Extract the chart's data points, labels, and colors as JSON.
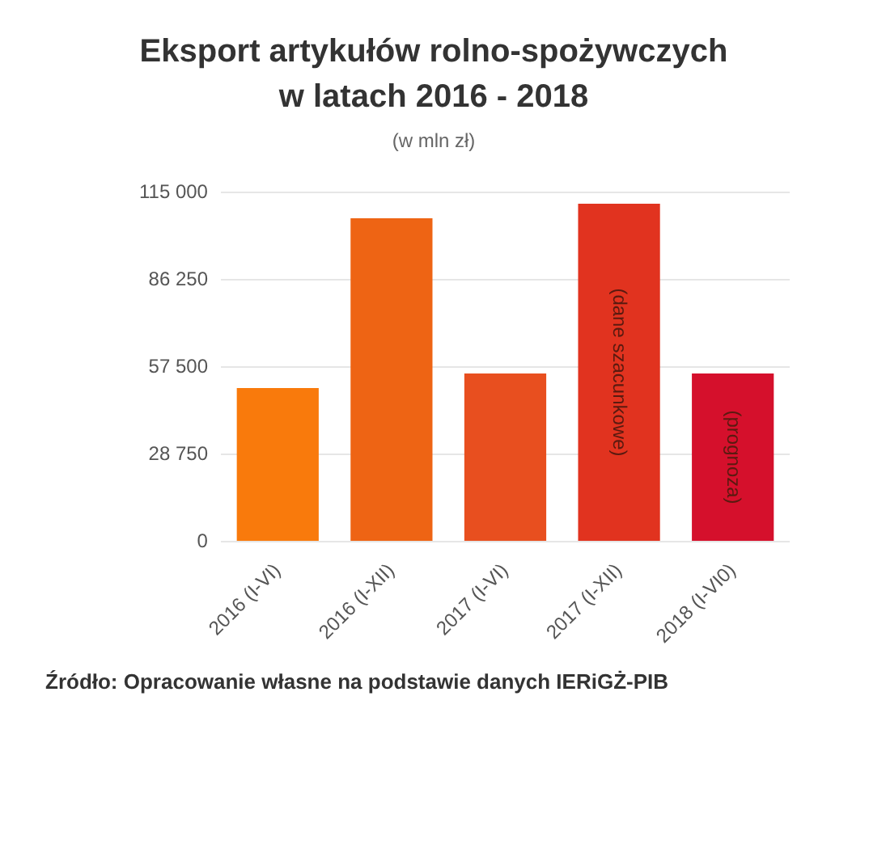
{
  "chart_data": {
    "type": "bar",
    "title": "Eksport artykułów rolno-spożywczych w latach 2016 - 2018",
    "subtitle": "(w mln zł)",
    "categories": [
      "2016 (I-VI)",
      "2016 (I-XII)",
      "2017 (I-VI)",
      "2017 (I-XII)",
      "2018 (I-VI0)"
    ],
    "values": [
      50600,
      106600,
      55400,
      111400,
      55400
    ],
    "colors": [
      "#f97a0c",
      "#ee6414",
      "#e84f1f",
      "#e1331f",
      "#d5102c"
    ],
    "ylim": [
      0,
      115000
    ],
    "yticks": [
      {
        "value": 0,
        "label": "0"
      },
      {
        "value": 28750,
        "label": "28 750"
      },
      {
        "value": 57500,
        "label": "57 500"
      },
      {
        "value": 86250,
        "label": "86 250"
      },
      {
        "value": 115000,
        "label": "115 000"
      }
    ],
    "grid": "y",
    "legend": false,
    "annotations": [
      {
        "text": "(dane szacunkowe)",
        "x": "2017 (I-XII)"
      },
      {
        "text": "(prognoza)",
        "x": "2018 (I-VI0)"
      },
      "Źródło: Opracowanie własne na podstawie danych IERiGŻ-PIB"
    ]
  }
}
